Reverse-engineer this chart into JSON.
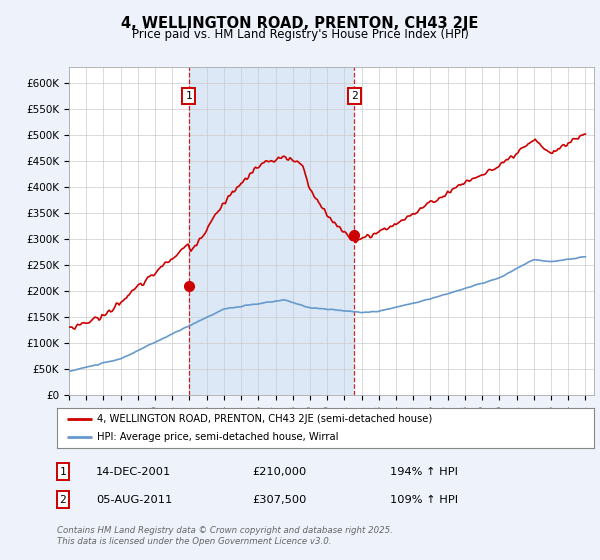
{
  "title": "4, WELLINGTON ROAD, PRENTON, CH43 2JE",
  "subtitle": "Price paid vs. HM Land Registry's House Price Index (HPI)",
  "title_fontsize": 10.5,
  "subtitle_fontsize": 8.5,
  "ylabel_ticks": [
    "£0",
    "£50K",
    "£100K",
    "£150K",
    "£200K",
    "£250K",
    "£300K",
    "£350K",
    "£400K",
    "£450K",
    "£500K",
    "£550K",
    "£600K"
  ],
  "ytick_values": [
    0,
    50000,
    100000,
    150000,
    200000,
    250000,
    300000,
    350000,
    400000,
    450000,
    500000,
    550000,
    600000
  ],
  "ylim": [
    0,
    630000
  ],
  "xlim_start": 1995.0,
  "xlim_end": 2025.5,
  "xtick_years": [
    1995,
    1996,
    1997,
    1998,
    1999,
    2000,
    2001,
    2002,
    2003,
    2004,
    2005,
    2006,
    2007,
    2008,
    2009,
    2010,
    2011,
    2012,
    2013,
    2014,
    2015,
    2016,
    2017,
    2018,
    2019,
    2020,
    2021,
    2022,
    2023,
    2024,
    2025
  ],
  "hpi_color": "#6699cc",
  "price_color": "#cc0000",
  "sale1_x": 2001.95,
  "sale1_y": 210000,
  "sale1_label": "1",
  "sale1_date": "14-DEC-2001",
  "sale1_price": "£210,000",
  "sale1_hpi": "194% ↑ HPI",
  "sale2_x": 2011.58,
  "sale2_y": 307500,
  "sale2_label": "2",
  "sale2_date": "05-AUG-2011",
  "sale2_price": "£307,500",
  "sale2_hpi": "109% ↑ HPI",
  "vline1_x": 2001.95,
  "vline2_x": 2011.58,
  "legend_line1": "4, WELLINGTON ROAD, PRENTON, CH43 2JE (semi-detached house)",
  "legend_line2": "HPI: Average price, semi-detached house, Wirral",
  "footer": "Contains HM Land Registry data © Crown copyright and database right 2025.\nThis data is licensed under the Open Government Licence v3.0.",
  "bg_color": "#eef2fa",
  "plot_bg_color": "#ffffff",
  "shade_color": "#dce8f5",
  "grid_color": "#cccccc"
}
